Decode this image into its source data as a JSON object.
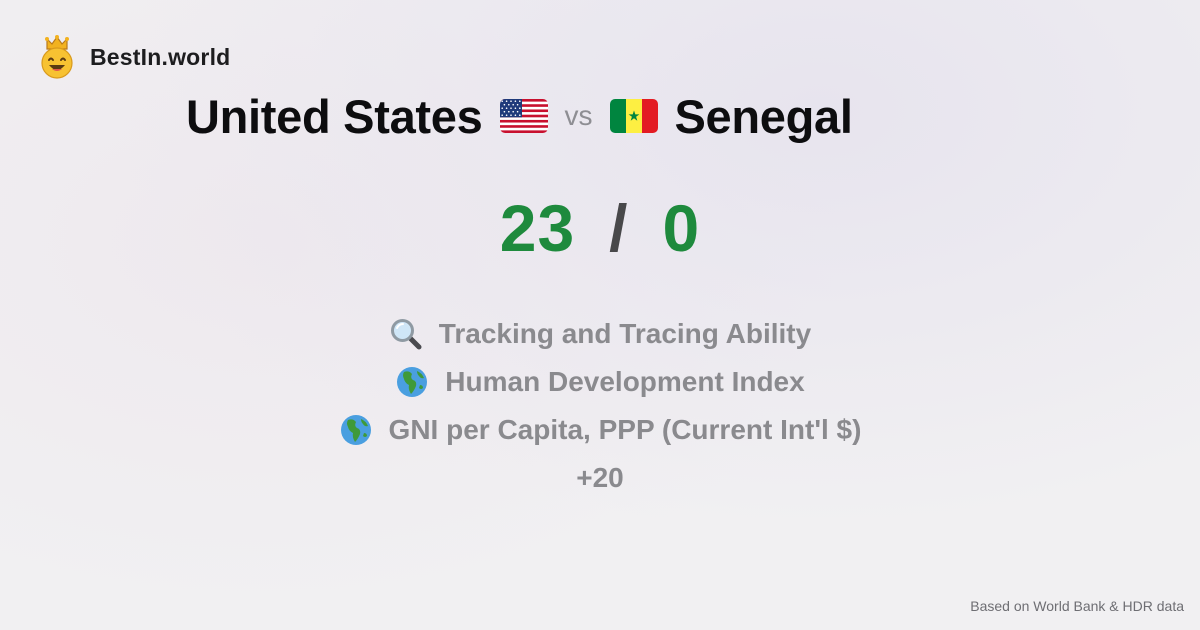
{
  "brand": {
    "name": "BestIn.world",
    "logo_icon": "crowned-smiley-icon"
  },
  "comparison": {
    "country_a": {
      "name": "United States",
      "flag_icon": "us-flag-icon"
    },
    "vs_label": "vs",
    "country_b": {
      "name": "Senegal",
      "flag_icon": "senegal-flag-icon"
    },
    "score_a": "23",
    "score_separator": "/",
    "score_b": "0"
  },
  "metrics": [
    {
      "label": "Tracking and Tracing Ability",
      "icon": "magnifying-glass-icon"
    },
    {
      "label": "Human Development Index",
      "icon": "globe-icon"
    },
    {
      "label": "GNI per Capita, PPP (Current Int'l $)",
      "icon": "globe-icon"
    }
  ],
  "more_label": "+20",
  "footer": {
    "source_note": "Based on World Bank & HDR data"
  },
  "colors": {
    "score_green": "#1e8a3d",
    "metric_gray": "#8a8a8e",
    "title_black": "#0d0d0f"
  }
}
